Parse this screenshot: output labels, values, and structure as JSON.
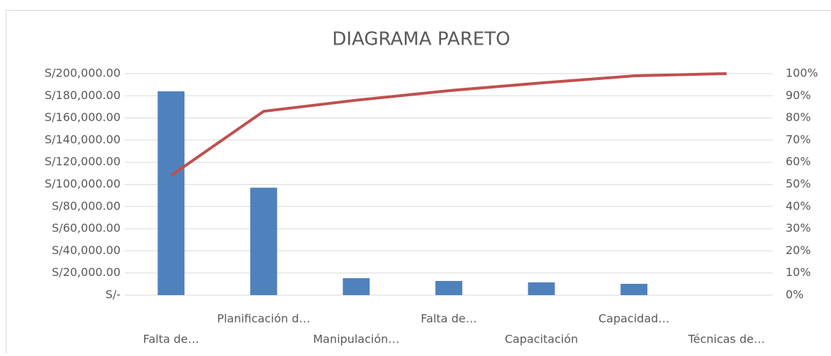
{
  "chart_data": {
    "type": "combo",
    "title": "DIAGRAMA PARETO",
    "categories": [
      "Falta de…",
      "Planificación d…",
      "Manipulación…",
      "Falta de…",
      "Capacitación",
      "Capacidad…",
      "Técnicas de…"
    ],
    "series": [
      {
        "type": "bar",
        "color": "#4f81bd",
        "values": [
          184000,
          97000,
          15300,
          12800,
          11500,
          10200,
          0
        ]
      },
      {
        "type": "line",
        "color": "#c0504d",
        "axis": "y2",
        "values": [
          54,
          83,
          88,
          92.3,
          95.8,
          99,
          100
        ]
      }
    ],
    "ylim": [
      0,
      200000
    ],
    "yticks": [
      {
        "value": 0,
        "label": "S/-"
      },
      {
        "value": 20000,
        "label": "S/20,000.00"
      },
      {
        "value": 40000,
        "label": "S/40,000.00"
      },
      {
        "value": 60000,
        "label": "S/60,000.00"
      },
      {
        "value": 80000,
        "label": "S/80,000.00"
      },
      {
        "value": 100000,
        "label": "S/100,000.00"
      },
      {
        "value": 120000,
        "label": "S/120,000.00"
      },
      {
        "value": 140000,
        "label": "S/140,000.00"
      },
      {
        "value": 160000,
        "label": "S/160,000.00"
      },
      {
        "value": 180000,
        "label": "S/180,000.00"
      },
      {
        "value": 200000,
        "label": "S/200,000.00"
      }
    ],
    "y2lim": [
      0,
      100
    ],
    "y2ticks": [
      {
        "value": 0,
        "label": "0%"
      },
      {
        "value": 10,
        "label": "10%"
      },
      {
        "value": 20,
        "label": "20%"
      },
      {
        "value": 30,
        "label": "30%"
      },
      {
        "value": 40,
        "label": "40%"
      },
      {
        "value": 50,
        "label": "50%"
      },
      {
        "value": 60,
        "label": "60%"
      },
      {
        "value": 70,
        "label": "70%"
      },
      {
        "value": 80,
        "label": "80%"
      },
      {
        "value": 90,
        "label": "90%"
      },
      {
        "value": 100,
        "label": "100%"
      }
    ],
    "grid": true
  }
}
